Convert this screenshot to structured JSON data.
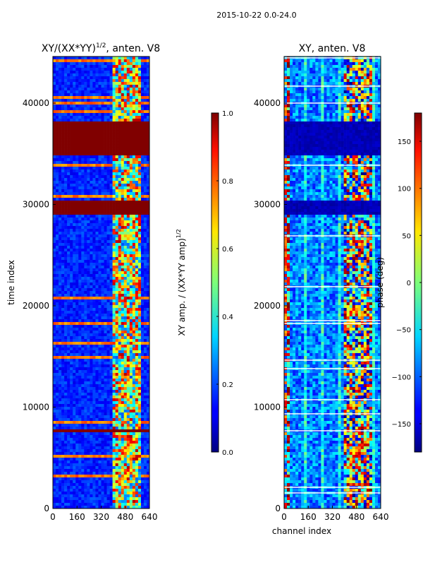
{
  "figure": {
    "suptitle": "2015-10-22 0.0-24.0"
  },
  "chart_data": [
    {
      "type": "heatmap",
      "title": "XY/(XX*YY)^(1/2), anten. V8",
      "title_main": "XY/(XX*YY)",
      "title_sup": "1/2",
      "title_tail": ", anten. V8",
      "xlabel": "",
      "ylabel": "time index",
      "xlim": [
        0,
        640
      ],
      "ylim": [
        0,
        44600
      ],
      "xticks": [
        0,
        160,
        320,
        480,
        640
      ],
      "yticks": [
        0,
        10000,
        20000,
        30000,
        40000
      ],
      "colormap": "jet",
      "bright_channel_range": [
        390,
        580
      ],
      "saturated_time_bands": [
        [
          7400,
          7900
        ],
        [
          28900,
          30300
        ],
        [
          34800,
          38300
        ]
      ],
      "colorbar": {
        "label_main": "XY amp. / (XX*YY amp)",
        "label_sup": "1/2",
        "range": [
          0.0,
          1.0
        ],
        "ticks": [
          "0.0",
          "0.2",
          "0.4",
          "0.6",
          "0.8",
          "1.0"
        ]
      }
    },
    {
      "type": "heatmap",
      "title": "XY, anten. V8",
      "xlabel": "channel index",
      "ylabel": "",
      "xlim": [
        0,
        640
      ],
      "ylim": [
        0,
        44600
      ],
      "xticks": [
        0,
        160,
        320,
        480,
        640
      ],
      "yticks": [
        0,
        10000,
        20000,
        30000,
        40000
      ],
      "colormap": "jet",
      "bright_channel_range": [
        390,
        580
      ],
      "low_value_time_bands": [
        [
          28900,
          30300
        ],
        [
          34800,
          38300
        ]
      ],
      "colorbar": {
        "label": "phase (deg)",
        "range": [
          -180,
          180
        ],
        "ticks": [
          "150",
          "100",
          "50",
          "0",
          "−50",
          "−100",
          "−150"
        ]
      }
    }
  ]
}
